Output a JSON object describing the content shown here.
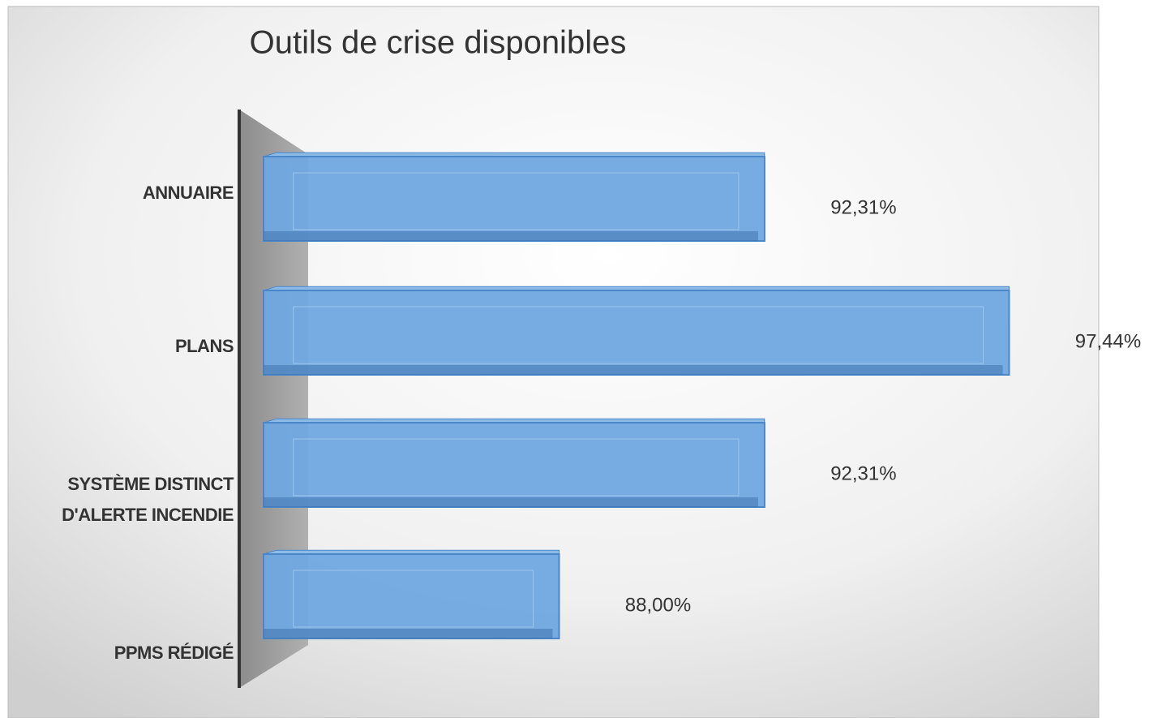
{
  "chart_data": {
    "type": "bar",
    "orientation": "horizontal",
    "title": "Outils de crise disponibles",
    "categories": [
      "ANNUAIRE",
      "PLANS",
      "SYSTÈME DISTINCT D'ALERTE INCENDIE",
      "PPMS RÉDIGÉ"
    ],
    "values": [
      92.31,
      97.44,
      92.31,
      88.0
    ],
    "value_labels": [
      "92,31%",
      "97,44%",
      "92,31%",
      "88,00%"
    ],
    "color": "#6fa8e0",
    "xlim": [
      81.8,
      100
    ]
  }
}
